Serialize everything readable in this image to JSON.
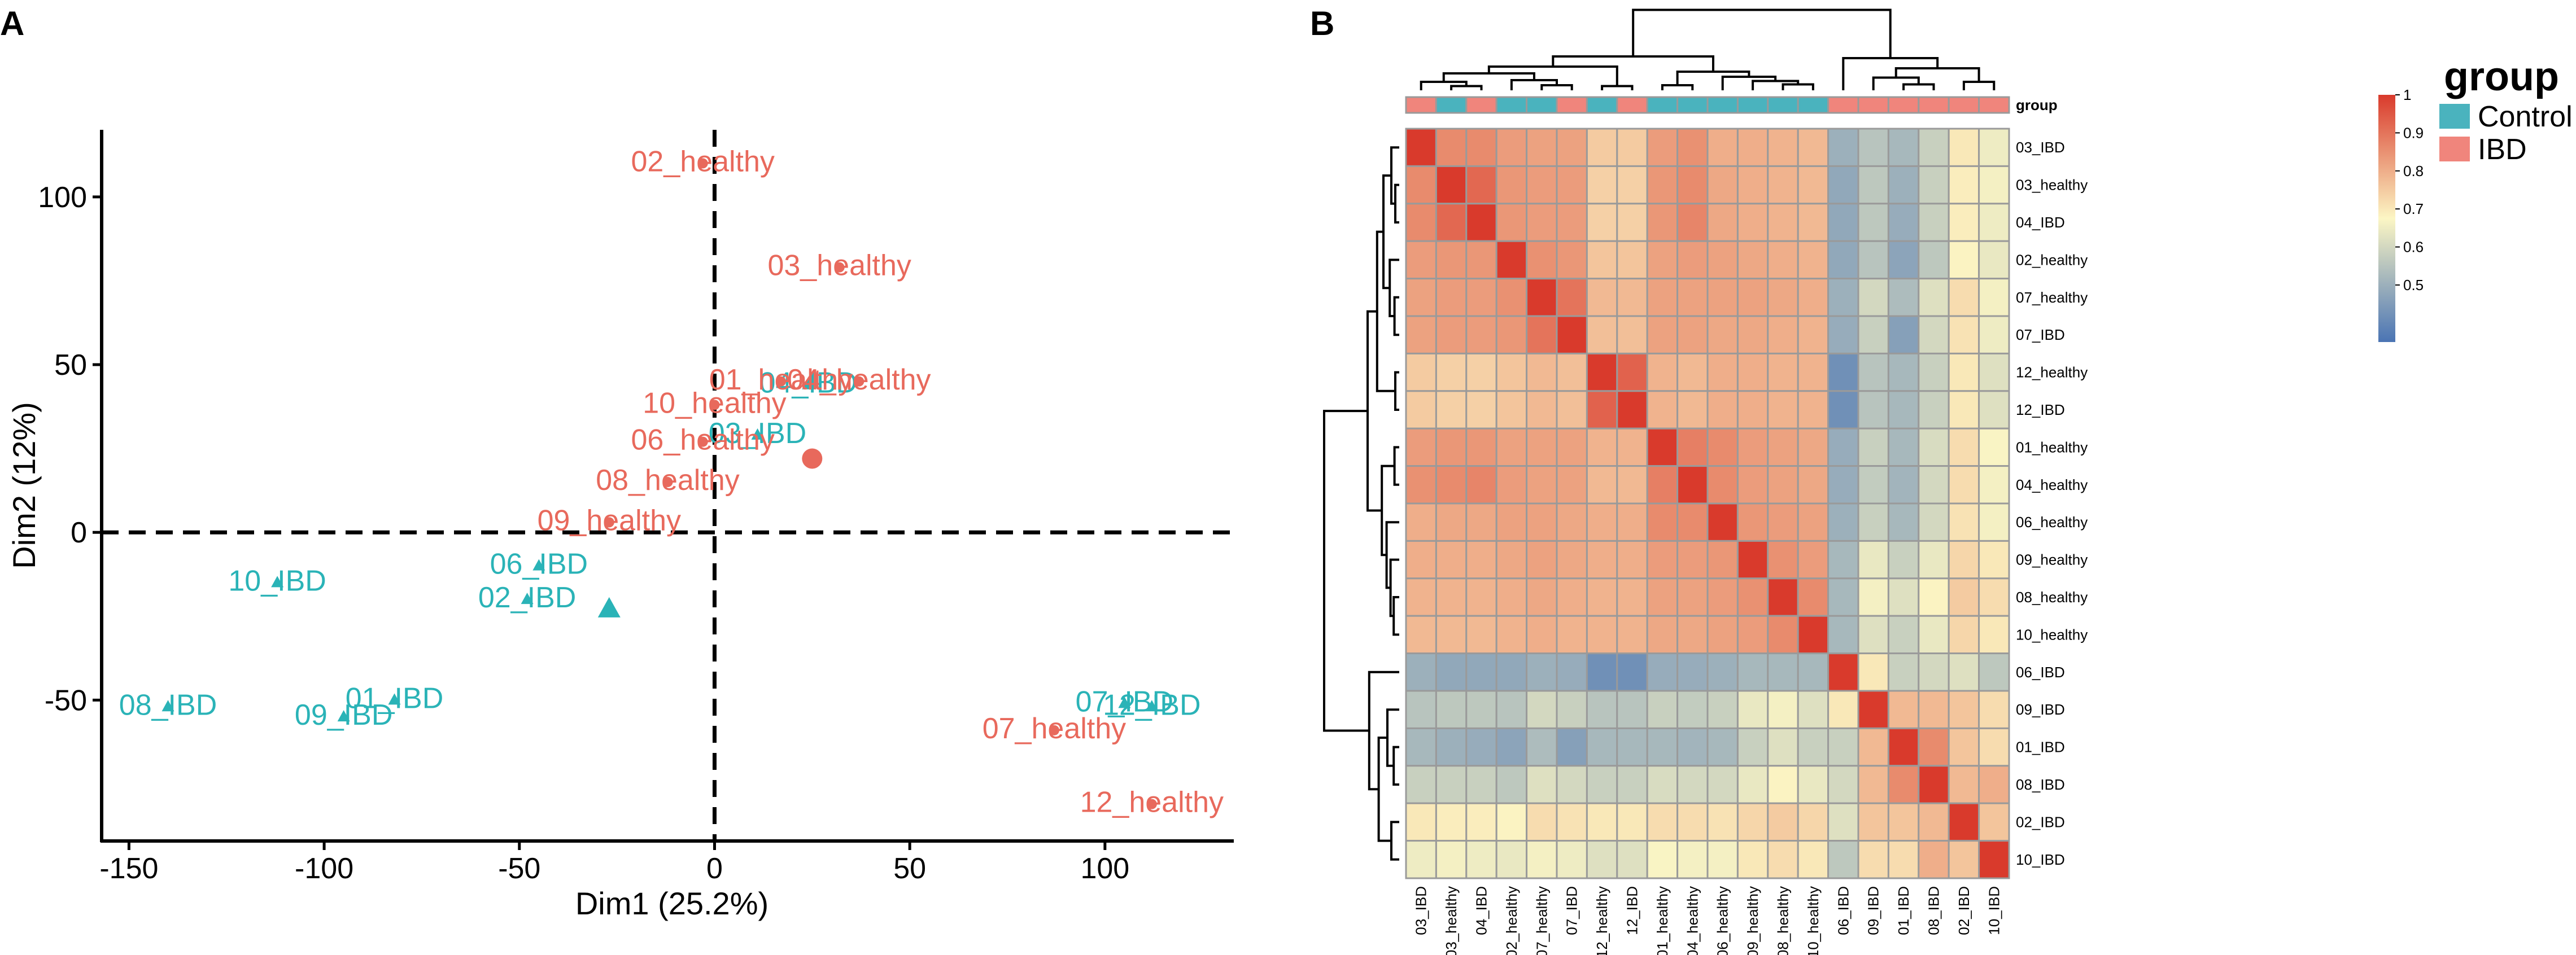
{
  "panels": {
    "a_letter": "A",
    "b_letter": "B"
  },
  "colors": {
    "control": "#2ab3b7",
    "ibd": "#e8695c",
    "group_control": "#4ab3be",
    "group_ibd": "#f0857c",
    "heat_low": "#4a74b4",
    "heat_mid": "#fcf6c4",
    "heat_high": "#d93a2c",
    "cell_border": "#9a9a9a",
    "axis": "#000000"
  },
  "chart_data": [
    {
      "id": "pca",
      "type": "scatter",
      "xlabel": "Dim1 (25.2%)",
      "ylabel": "Dim2 (12%)",
      "xlim": [
        -157,
        133
      ],
      "ylim": [
        -92,
        120
      ],
      "xticks": [
        -150,
        -100,
        -50,
        0,
        50,
        100
      ],
      "yticks": [
        -50,
        0,
        50,
        100
      ],
      "reference_lines": {
        "x": 0,
        "y": 0,
        "style": "dashed"
      },
      "series": [
        {
          "name": "Control",
          "marker": "triangle",
          "points": [
            {
              "label": "04_IBD",
              "x": 24,
              "y": 44
            },
            {
              "label": "03_IBD",
              "x": 11,
              "y": 29
            },
            {
              "label": "06_IBD",
              "x": -45,
              "y": -10
            },
            {
              "label": "02_IBD",
              "x": -48,
              "y": -20
            },
            {
              "label": "10_IBD",
              "x": -112,
              "y": -15
            },
            {
              "label": "01_IBD",
              "x": -82,
              "y": -50
            },
            {
              "label": "08_IBD",
              "x": -140,
              "y": -52
            },
            {
              "label": "09_IBD",
              "x": -95,
              "y": -55
            },
            {
              "label": "07_IBD",
              "x": 105,
              "y": -51
            },
            {
              "label": "12_IBD",
              "x": 112,
              "y": -52
            }
          ],
          "centroid": {
            "x": -27,
            "y": -23
          }
        },
        {
          "name": "IBD",
          "marker": "dot",
          "points": [
            {
              "label": "02_healthy",
              "x": -3,
              "y": 110
            },
            {
              "label": "03_healthy",
              "x": 32,
              "y": 79
            },
            {
              "label": "01_healthy",
              "x": 17,
              "y": 45
            },
            {
              "label": "04_healthy",
              "x": 37,
              "y": 45
            },
            {
              "label": "10_healthy",
              "x": 0,
              "y": 38
            },
            {
              "label": "06_healthy",
              "x": -3,
              "y": 27
            },
            {
              "label": "08_healthy",
              "x": -12,
              "y": 15
            },
            {
              "label": "09_healthy",
              "x": -27,
              "y": 3
            },
            {
              "label": "07_healthy",
              "x": 87,
              "y": -59
            },
            {
              "label": "12_healthy",
              "x": 112,
              "y": -81
            }
          ],
          "centroid": {
            "x": 25,
            "y": 22
          }
        }
      ]
    },
    {
      "id": "heatmap",
      "type": "heatmap",
      "labels": [
        "03_IBD",
        "03_healthy",
        "04_IBD",
        "02_healthy",
        "07_healthy",
        "07_IBD",
        "12_healthy",
        "12_IBD",
        "01_healthy",
        "04_healthy",
        "06_healthy",
        "09_healthy",
        "08_healthy",
        "10_healthy",
        "06_IBD",
        "09_IBD",
        "01_IBD",
        "08_IBD",
        "02_IBD",
        "10_IBD"
      ],
      "group_annotation": {
        "title": "group",
        "values": [
          "IBD",
          "Control",
          "IBD",
          "Control",
          "Control",
          "IBD",
          "Control",
          "IBD",
          "Control",
          "Control",
          "Control",
          "Control",
          "Control",
          "Control",
          "IBD",
          "IBD",
          "IBD",
          "IBD",
          "IBD",
          "IBD"
        ]
      },
      "color_scale": {
        "min": 0.35,
        "max": 1.0,
        "ticks": [
          1,
          0.9,
          0.8,
          0.7,
          0.6,
          0.5
        ]
      },
      "values": [
        [
          1.0,
          0.86,
          0.86,
          0.83,
          0.82,
          0.82,
          0.75,
          0.75,
          0.83,
          0.85,
          0.8,
          0.8,
          0.79,
          0.78,
          0.5,
          0.55,
          0.52,
          0.58,
          0.7,
          0.65
        ],
        [
          0.86,
          1.0,
          0.92,
          0.84,
          0.83,
          0.83,
          0.74,
          0.74,
          0.84,
          0.86,
          0.81,
          0.8,
          0.79,
          0.78,
          0.48,
          0.56,
          0.5,
          0.58,
          0.69,
          0.66
        ],
        [
          0.86,
          0.92,
          1.0,
          0.84,
          0.83,
          0.83,
          0.74,
          0.74,
          0.84,
          0.87,
          0.81,
          0.8,
          0.79,
          0.78,
          0.48,
          0.56,
          0.49,
          0.58,
          0.69,
          0.65
        ],
        [
          0.83,
          0.84,
          0.84,
          1.0,
          0.85,
          0.84,
          0.76,
          0.76,
          0.82,
          0.83,
          0.82,
          0.81,
          0.8,
          0.79,
          0.48,
          0.55,
          0.47,
          0.56,
          0.68,
          0.64
        ],
        [
          0.82,
          0.83,
          0.83,
          0.85,
          1.0,
          0.9,
          0.78,
          0.78,
          0.82,
          0.82,
          0.82,
          0.82,
          0.81,
          0.8,
          0.5,
          0.6,
          0.53,
          0.62,
          0.72,
          0.66
        ],
        [
          0.82,
          0.83,
          0.83,
          0.84,
          0.9,
          1.0,
          0.77,
          0.77,
          0.82,
          0.82,
          0.81,
          0.81,
          0.8,
          0.79,
          0.49,
          0.58,
          0.46,
          0.6,
          0.71,
          0.65
        ],
        [
          0.75,
          0.74,
          0.74,
          0.76,
          0.78,
          0.77,
          1.0,
          0.93,
          0.79,
          0.78,
          0.8,
          0.8,
          0.79,
          0.79,
          0.42,
          0.55,
          0.52,
          0.58,
          0.7,
          0.62
        ],
        [
          0.75,
          0.74,
          0.74,
          0.76,
          0.78,
          0.77,
          0.93,
          1.0,
          0.79,
          0.78,
          0.8,
          0.8,
          0.79,
          0.79,
          0.42,
          0.55,
          0.52,
          0.58,
          0.7,
          0.62
        ],
        [
          0.83,
          0.84,
          0.84,
          0.82,
          0.82,
          0.82,
          0.79,
          0.79,
          1.0,
          0.88,
          0.86,
          0.83,
          0.82,
          0.81,
          0.49,
          0.58,
          0.52,
          0.61,
          0.72,
          0.67
        ],
        [
          0.85,
          0.86,
          0.87,
          0.83,
          0.82,
          0.82,
          0.78,
          0.78,
          0.88,
          1.0,
          0.86,
          0.83,
          0.82,
          0.81,
          0.49,
          0.57,
          0.51,
          0.6,
          0.72,
          0.66
        ],
        [
          0.8,
          0.81,
          0.81,
          0.82,
          0.82,
          0.81,
          0.8,
          0.8,
          0.86,
          0.86,
          1.0,
          0.84,
          0.83,
          0.82,
          0.5,
          0.58,
          0.52,
          0.6,
          0.71,
          0.66
        ],
        [
          0.8,
          0.8,
          0.8,
          0.81,
          0.82,
          0.81,
          0.8,
          0.8,
          0.83,
          0.83,
          0.84,
          1.0,
          0.85,
          0.83,
          0.52,
          0.64,
          0.58,
          0.64,
          0.73,
          0.7
        ],
        [
          0.79,
          0.79,
          0.79,
          0.8,
          0.81,
          0.8,
          0.79,
          0.79,
          0.82,
          0.82,
          0.83,
          0.85,
          1.0,
          0.86,
          0.52,
          0.66,
          0.62,
          0.68,
          0.75,
          0.72
        ],
        [
          0.78,
          0.78,
          0.78,
          0.79,
          0.8,
          0.79,
          0.79,
          0.79,
          0.81,
          0.81,
          0.82,
          0.83,
          0.86,
          1.0,
          0.52,
          0.62,
          0.58,
          0.64,
          0.73,
          0.7
        ],
        [
          0.5,
          0.48,
          0.48,
          0.48,
          0.5,
          0.49,
          0.42,
          0.42,
          0.49,
          0.49,
          0.5,
          0.52,
          0.52,
          0.52,
          1.0,
          0.7,
          0.58,
          0.6,
          0.62,
          0.56
        ],
        [
          0.55,
          0.56,
          0.56,
          0.55,
          0.6,
          0.58,
          0.55,
          0.55,
          0.58,
          0.57,
          0.58,
          0.64,
          0.66,
          0.62,
          0.7,
          1.0,
          0.78,
          0.78,
          0.76,
          0.72
        ],
        [
          0.52,
          0.5,
          0.49,
          0.47,
          0.53,
          0.46,
          0.52,
          0.52,
          0.52,
          0.51,
          0.52,
          0.58,
          0.62,
          0.58,
          0.58,
          0.78,
          1.0,
          0.86,
          0.76,
          0.72
        ],
        [
          0.58,
          0.58,
          0.58,
          0.56,
          0.62,
          0.6,
          0.58,
          0.58,
          0.61,
          0.6,
          0.6,
          0.64,
          0.68,
          0.64,
          0.6,
          0.78,
          0.86,
          1.0,
          0.78,
          0.8
        ],
        [
          0.7,
          0.69,
          0.69,
          0.68,
          0.72,
          0.71,
          0.7,
          0.7,
          0.72,
          0.72,
          0.71,
          0.73,
          0.75,
          0.73,
          0.62,
          0.76,
          0.76,
          0.78,
          1.0,
          0.76
        ],
        [
          0.65,
          0.66,
          0.65,
          0.64,
          0.66,
          0.65,
          0.62,
          0.62,
          0.67,
          0.66,
          0.66,
          0.7,
          0.72,
          0.7,
          0.56,
          0.72,
          0.72,
          0.8,
          0.76,
          1.0
        ]
      ],
      "legend": {
        "title": "group",
        "entries": [
          "Control",
          "IBD"
        ]
      }
    }
  ]
}
